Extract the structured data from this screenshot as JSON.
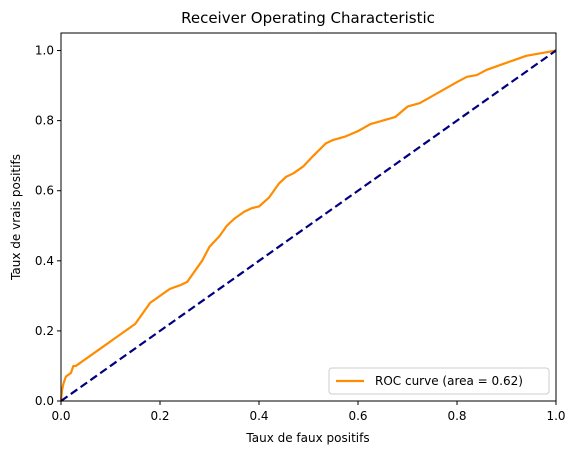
{
  "chart_data": {
    "type": "line",
    "title": "Receiver Operating Characteristic",
    "xlabel": "Taux de faux positifs",
    "ylabel": "Taux de vrais positifs",
    "xlim": [
      0.0,
      1.0
    ],
    "ylim": [
      0.0,
      1.05
    ],
    "xticks": [
      "0.0",
      "0.2",
      "0.4",
      "0.6",
      "0.8",
      "1.0"
    ],
    "yticks": [
      "0.0",
      "0.2",
      "0.4",
      "0.6",
      "0.8",
      "1.0"
    ],
    "grid": false,
    "legend": {
      "position": "lower-right",
      "entries": [
        "ROC curve (area = 0.62)"
      ]
    },
    "series": [
      {
        "name": "ROC curve (area = 0.62)",
        "color": "#ff8c00",
        "line_style": "solid",
        "x": [
          0.0,
          0.002,
          0.005,
          0.01,
          0.02,
          0.025,
          0.03,
          0.05,
          0.07,
          0.09,
          0.11,
          0.13,
          0.15,
          0.165,
          0.18,
          0.2,
          0.22,
          0.24,
          0.255,
          0.27,
          0.285,
          0.3,
          0.32,
          0.335,
          0.35,
          0.37,
          0.385,
          0.4,
          0.42,
          0.44,
          0.455,
          0.47,
          0.49,
          0.51,
          0.535,
          0.55,
          0.575,
          0.6,
          0.625,
          0.65,
          0.675,
          0.7,
          0.725,
          0.75,
          0.775,
          0.8,
          0.82,
          0.84,
          0.86,
          0.88,
          0.9,
          0.92,
          0.94,
          0.96,
          0.98,
          1.0
        ],
        "y": [
          0.0,
          0.03,
          0.05,
          0.07,
          0.08,
          0.1,
          0.1,
          0.12,
          0.14,
          0.16,
          0.18,
          0.2,
          0.22,
          0.25,
          0.28,
          0.3,
          0.32,
          0.33,
          0.34,
          0.37,
          0.4,
          0.44,
          0.47,
          0.5,
          0.52,
          0.54,
          0.55,
          0.555,
          0.58,
          0.62,
          0.64,
          0.65,
          0.67,
          0.7,
          0.735,
          0.745,
          0.755,
          0.77,
          0.79,
          0.8,
          0.81,
          0.84,
          0.85,
          0.87,
          0.89,
          0.91,
          0.925,
          0.93,
          0.945,
          0.955,
          0.965,
          0.975,
          0.985,
          0.99,
          0.995,
          1.0
        ]
      },
      {
        "name": "",
        "color": "#000080",
        "line_style": "dashed",
        "x": [
          0.0,
          1.0
        ],
        "y": [
          0.0,
          1.0
        ]
      }
    ]
  }
}
